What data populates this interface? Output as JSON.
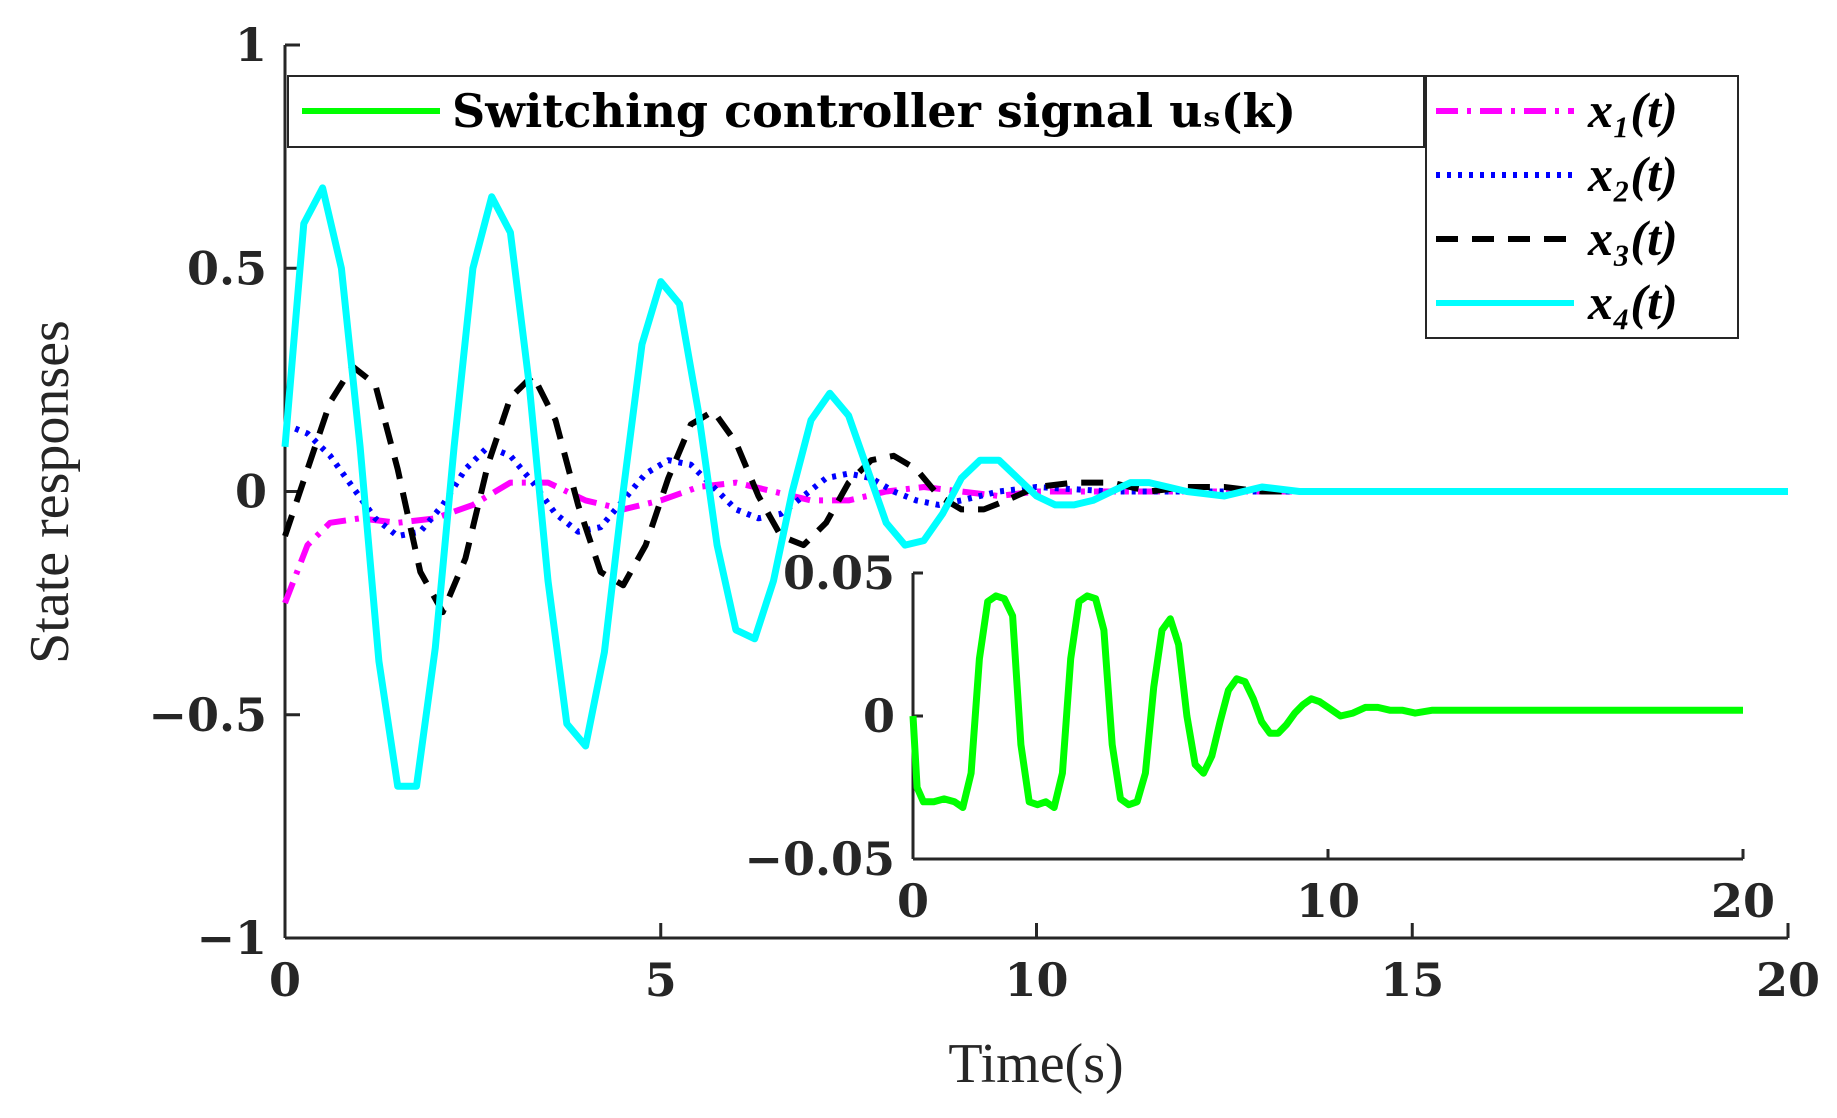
{
  "chart_data": {
    "type": "line",
    "main": {
      "xlabel": "Time(s)",
      "ylabel": "State responses",
      "xlim": [
        0,
        20
      ],
      "ylim": [
        -1,
        1
      ],
      "xticks": [
        0,
        5,
        10,
        15,
        20
      ],
      "yticks": [
        -1,
        -0.5,
        0,
        0.5,
        1
      ],
      "xtick_labels": [
        "0",
        "5",
        "10",
        "15",
        "20"
      ],
      "ytick_labels": [
        "−1",
        "−0.5",
        "0",
        "0.5",
        "1"
      ],
      "grid": false,
      "series": [
        {
          "name": "x1(t)",
          "legend": "x₁(t)",
          "color": "#ff00ff",
          "style": "dash-dot",
          "x": [
            0,
            0.3,
            0.6,
            1.0,
            1.5,
            2.0,
            2.5,
            3.0,
            3.5,
            4.0,
            4.5,
            5.0,
            5.5,
            6.0,
            6.5,
            7.0,
            7.5,
            8.0,
            8.5,
            9.0,
            9.5,
            10,
            11,
            12,
            13,
            14,
            16,
            18,
            20
          ],
          "y": [
            -0.25,
            -0.12,
            -0.07,
            -0.06,
            -0.07,
            -0.06,
            -0.03,
            0.02,
            0.02,
            -0.02,
            -0.04,
            -0.02,
            0.01,
            0.02,
            0.0,
            -0.02,
            -0.02,
            0.0,
            0.01,
            0.0,
            -0.01,
            0.0,
            0.0,
            0.0,
            0.0,
            0.0,
            0.0,
            0.0,
            0.0
          ]
        },
        {
          "name": "x2(t)",
          "legend": "x₂(t)",
          "color": "#0000ff",
          "style": "dotted",
          "x": [
            0,
            0.3,
            0.6,
            0.9,
            1.2,
            1.5,
            1.8,
            2.1,
            2.4,
            2.7,
            3.0,
            3.3,
            3.6,
            3.9,
            4.2,
            4.5,
            4.8,
            5.1,
            5.4,
            5.7,
            6.0,
            6.3,
            6.6,
            6.9,
            7.2,
            7.5,
            7.8,
            8.1,
            8.4,
            8.7,
            9.0,
            9.5,
            10,
            11,
            12,
            13,
            14,
            16,
            18,
            20
          ],
          "y": [
            0.15,
            0.13,
            0.08,
            0.01,
            -0.06,
            -0.1,
            -0.09,
            -0.03,
            0.05,
            0.1,
            0.08,
            0.02,
            -0.05,
            -0.09,
            -0.08,
            -0.02,
            0.04,
            0.07,
            0.06,
            0.01,
            -0.04,
            -0.06,
            -0.05,
            -0.01,
            0.03,
            0.04,
            0.03,
            0.0,
            -0.02,
            -0.03,
            -0.02,
            0.0,
            0.01,
            0.0,
            0.0,
            0.0,
            0.0,
            0.0,
            0.0,
            0.0
          ]
        },
        {
          "name": "x3(t)",
          "legend": "x₃(t)",
          "color": "#000000",
          "style": "dashed",
          "x": [
            0,
            0.3,
            0.6,
            0.9,
            1.2,
            1.5,
            1.8,
            2.1,
            2.4,
            2.7,
            3.0,
            3.3,
            3.6,
            3.9,
            4.2,
            4.5,
            4.8,
            5.1,
            5.4,
            5.7,
            6.0,
            6.3,
            6.6,
            6.9,
            7.2,
            7.5,
            7.8,
            8.1,
            8.4,
            8.7,
            9.0,
            9.3,
            9.6,
            10,
            10.5,
            11,
            11.5,
            12,
            12.5,
            13,
            14,
            16,
            18,
            20
          ],
          "y": [
            -0.1,
            0.05,
            0.2,
            0.28,
            0.24,
            0.05,
            -0.18,
            -0.27,
            -0.15,
            0.06,
            0.21,
            0.26,
            0.16,
            -0.03,
            -0.18,
            -0.21,
            -0.12,
            0.03,
            0.15,
            0.18,
            0.11,
            -0.01,
            -0.1,
            -0.12,
            -0.07,
            0.02,
            0.07,
            0.08,
            0.05,
            -0.01,
            -0.04,
            -0.04,
            -0.02,
            0.01,
            0.02,
            0.02,
            0.0,
            0.01,
            0.01,
            0.0,
            0.0,
            0.0,
            0.0,
            0.0
          ]
        },
        {
          "name": "x4(t)",
          "legend": "x₄(t)",
          "color": "#00ffff",
          "style": "solid",
          "x": [
            0,
            0.1,
            0.25,
            0.5,
            0.75,
            1.0,
            1.25,
            1.5,
            1.75,
            2.0,
            2.25,
            2.5,
            2.75,
            3.0,
            3.25,
            3.5,
            3.75,
            4.0,
            4.25,
            4.5,
            4.75,
            5.0,
            5.25,
            5.5,
            5.75,
            6.0,
            6.25,
            6.5,
            6.75,
            7.0,
            7.25,
            7.5,
            7.75,
            8.0,
            8.25,
            8.5,
            8.75,
            9.0,
            9.25,
            9.5,
            9.75,
            10.0,
            10.25,
            10.5,
            10.75,
            11.0,
            11.25,
            11.5,
            11.75,
            12.0,
            12.5,
            13.0,
            13.5,
            14.0,
            14.5,
            15.0,
            15.5,
            16,
            17,
            18,
            19,
            20
          ],
          "y": [
            0.1,
            0.3,
            0.6,
            0.68,
            0.5,
            0.1,
            -0.38,
            -0.66,
            -0.66,
            -0.35,
            0.1,
            0.5,
            0.66,
            0.58,
            0.24,
            -0.2,
            -0.52,
            -0.57,
            -0.36,
            0.0,
            0.33,
            0.47,
            0.42,
            0.18,
            -0.12,
            -0.31,
            -0.33,
            -0.2,
            0.0,
            0.16,
            0.22,
            0.17,
            0.05,
            -0.07,
            -0.12,
            -0.11,
            -0.05,
            0.03,
            0.07,
            0.07,
            0.03,
            -0.01,
            -0.03,
            -0.03,
            -0.02,
            0.0,
            0.02,
            0.02,
            0.01,
            0.0,
            -0.01,
            0.01,
            0.0,
            0.0,
            0.0,
            0.0,
            0.0,
            0.0,
            0.0,
            0.0,
            0.0,
            0.0
          ]
        }
      ]
    },
    "inset": {
      "xlim": [
        0,
        20
      ],
      "ylim": [
        -0.05,
        0.05
      ],
      "xticks": [
        0,
        10,
        20
      ],
      "yticks": [
        -0.05,
        0,
        0.05
      ],
      "xtick_labels": [
        "0",
        "10",
        "20"
      ],
      "ytick_labels": [
        "−0.05",
        "0",
        "0.05"
      ],
      "series": [
        {
          "name": "us(k)",
          "legend": "Switching controller signal uₛ(k)",
          "color": "#00ff00",
          "style": "solid",
          "x": [
            0,
            0.1,
            0.25,
            0.5,
            0.75,
            1.0,
            1.2,
            1.4,
            1.6,
            1.8,
            2.0,
            2.2,
            2.4,
            2.6,
            2.8,
            3.0,
            3.2,
            3.4,
            3.6,
            3.8,
            4.0,
            4.2,
            4.4,
            4.6,
            4.8,
            5.0,
            5.2,
            5.4,
            5.6,
            5.8,
            6.0,
            6.2,
            6.4,
            6.6,
            6.8,
            7.0,
            7.2,
            7.4,
            7.6,
            7.8,
            8.0,
            8.2,
            8.4,
            8.6,
            8.8,
            9.0,
            9.2,
            9.4,
            9.6,
            9.8,
            10.0,
            10.3,
            10.6,
            10.9,
            11.2,
            11.5,
            11.8,
            12.1,
            12.5,
            13.0,
            13.5,
            14.0,
            14.5,
            15,
            16,
            17,
            18,
            19,
            20
          ],
          "y": [
            0.0,
            -0.025,
            -0.03,
            -0.03,
            -0.029,
            -0.03,
            -0.032,
            -0.02,
            0.02,
            0.04,
            0.042,
            0.041,
            0.035,
            -0.01,
            -0.03,
            -0.031,
            -0.03,
            -0.032,
            -0.02,
            0.02,
            0.04,
            0.042,
            0.041,
            0.03,
            -0.01,
            -0.029,
            -0.031,
            -0.03,
            -0.02,
            0.01,
            0.03,
            0.034,
            0.025,
            0.0,
            -0.017,
            -0.02,
            -0.014,
            -0.002,
            0.009,
            0.013,
            0.012,
            0.006,
            -0.002,
            -0.006,
            -0.006,
            -0.003,
            0.001,
            0.004,
            0.006,
            0.005,
            0.003,
            0.0,
            0.001,
            0.003,
            0.003,
            0.002,
            0.002,
            0.001,
            0.002,
            0.002,
            0.002,
            0.002,
            0.002,
            0.002,
            0.002,
            0.002,
            0.002,
            0.002,
            0.002
          ]
        }
      ]
    },
    "legends": {
      "left": [
        "Switching controller signal uₛ(k)"
      ],
      "right": [
        "x₁(t)",
        "x₂(t)",
        "x₃(t)",
        "x₄(t)"
      ],
      "left_placement": "top-left",
      "right_placement": "top-right"
    }
  }
}
